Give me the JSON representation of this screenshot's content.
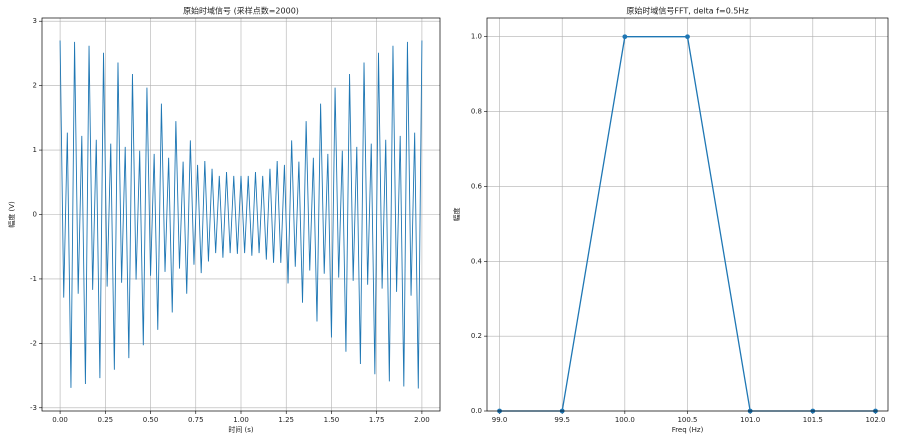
{
  "chart_data": [
    {
      "type": "line",
      "title": "原始时域信号 (采样点数=2000)",
      "xlabel": "时间 (s)",
      "ylabel": "幅度 (V)",
      "color": "#1f77b4",
      "grid": true,
      "markers": false,
      "x": [
        0,
        0.02,
        0.04,
        0.06,
        0.08,
        0.1,
        0.12,
        0.14,
        0.16,
        0.18,
        0.2,
        0.22,
        0.24,
        0.26,
        0.28,
        0.3,
        0.32,
        0.34,
        0.36,
        0.38,
        0.4,
        0.42,
        0.44,
        0.46,
        0.48,
        0.5,
        0.52,
        0.54,
        0.56,
        0.58,
        0.6,
        0.62,
        0.64,
        0.66,
        0.68,
        0.7,
        0.72,
        0.74,
        0.76,
        0.78,
        0.8,
        0.82,
        0.84,
        0.86,
        0.88,
        0.9,
        0.92,
        0.94,
        0.96,
        0.98,
        1,
        1.02,
        1.04,
        1.06,
        1.08,
        1.1,
        1.12,
        1.14,
        1.16,
        1.18,
        1.2,
        1.22,
        1.24,
        1.26,
        1.28,
        1.3,
        1.32,
        1.34,
        1.36,
        1.38,
        1.4,
        1.42,
        1.44,
        1.46,
        1.48,
        1.5,
        1.52,
        1.54,
        1.56,
        1.58,
        1.6,
        1.62,
        1.64,
        1.66,
        1.68,
        1.7,
        1.72,
        1.74,
        1.76,
        1.78,
        1.8,
        1.82,
        1.84,
        1.86,
        1.88,
        1.9,
        1.92,
        1.94,
        1.96,
        1.98,
        2
      ],
      "values": [
        2.7,
        -1.29,
        1.27,
        -2.69,
        2.68,
        -1.23,
        1.22,
        -2.63,
        2.62,
        -1.17,
        1.16,
        -2.54,
        2.51,
        -1.12,
        1.1,
        -2.41,
        2.36,
        -1.06,
        1.05,
        -2.23,
        2.18,
        -1.01,
        0.99,
        -2.03,
        1.97,
        -0.95,
        0.94,
        -1.79,
        1.72,
        -0.89,
        0.88,
        -1.52,
        1.45,
        -0.84,
        0.82,
        -1.23,
        1.15,
        -0.78,
        0.77,
        -0.91,
        0.83,
        -0.73,
        0.71,
        -0.6,
        0.6,
        -0.67,
        0.66,
        -0.6,
        0.6,
        -0.61,
        0.6,
        -0.6,
        0.6,
        -0.64,
        0.66,
        -0.6,
        0.6,
        -0.7,
        0.71,
        -0.75,
        0.83,
        -0.75,
        0.77,
        -1.07,
        1.15,
        -0.81,
        0.82,
        -1.37,
        1.45,
        -0.87,
        0.88,
        -1.66,
        1.72,
        -0.92,
        0.94,
        -1.91,
        1.97,
        -0.98,
        0.99,
        -2.13,
        2.18,
        -1.03,
        1.05,
        -2.32,
        2.36,
        -1.09,
        1.1,
        -2.48,
        2.51,
        -1.15,
        1.16,
        -2.59,
        2.62,
        -1.2,
        1.22,
        -2.67,
        2.68,
        -1.26,
        1.27,
        -2.7,
        2.7
      ],
      "xlim": [
        -0.1,
        2.1
      ],
      "ylim": [
        -3.05,
        3.05
      ],
      "xticks": [
        {
          "value": 0,
          "label": "0.00"
        },
        0.25,
        {
          "value": 0.5,
          "label": "0.50"
        },
        0.75,
        {
          "value": 1,
          "label": "1.00"
        },
        1.25,
        {
          "value": 1.5,
          "label": "1.50"
        },
        1.75,
        {
          "value": 2,
          "label": "2.00"
        }
      ],
      "yticks": [
        -3,
        -2,
        -1,
        0,
        1,
        2,
        3
      ]
    },
    {
      "type": "line",
      "title": "原始时域信号FFT, delta f=0.5Hz",
      "xlabel": "Freq (Hz)",
      "ylabel": "幅度",
      "color": "#1f77b4",
      "grid": true,
      "markers": true,
      "x": [
        99,
        99.5,
        100,
        100.5,
        101,
        101.5,
        102
      ],
      "values": [
        0,
        0,
        1,
        1,
        0,
        0,
        0
      ],
      "xlim": [
        98.9,
        102.1
      ],
      "ylim": [
        0,
        1.05
      ],
      "xticks": [
        {
          "value": 99,
          "label": "99.0"
        },
        99.5,
        {
          "value": 100,
          "label": "100.0"
        },
        100.5,
        {
          "value": 101,
          "label": "101.0"
        },
        101.5,
        {
          "value": 102,
          "label": "102.0"
        }
      ],
      "yticks": [
        {
          "value": 0,
          "label": "0.0"
        },
        0.2,
        0.4,
        0.6,
        0.8,
        {
          "value": 1,
          "label": "1.0"
        }
      ]
    }
  ]
}
